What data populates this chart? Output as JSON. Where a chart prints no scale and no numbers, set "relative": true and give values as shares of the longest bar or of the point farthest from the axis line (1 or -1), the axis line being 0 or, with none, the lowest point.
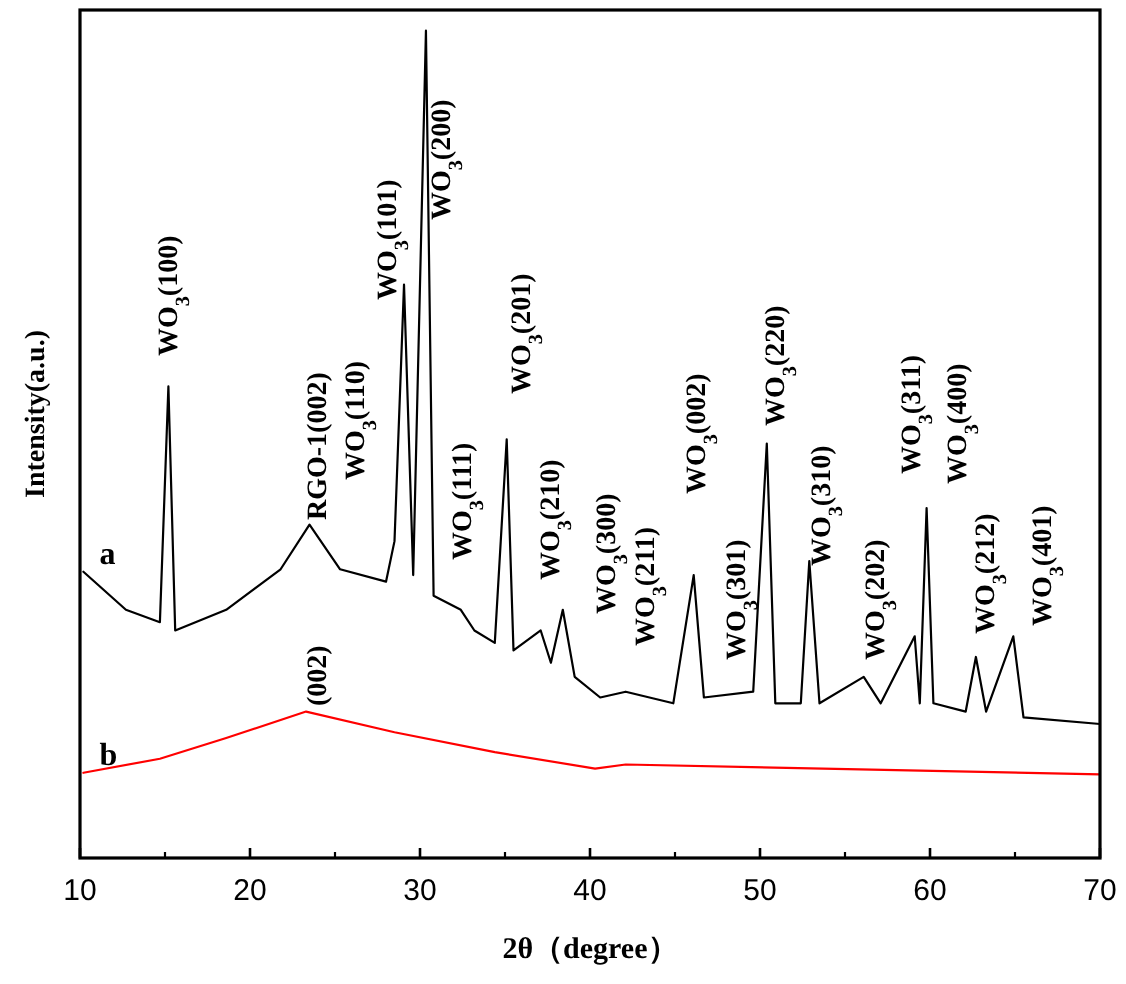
{
  "chart_data": {
    "type": "line",
    "relative": true,
    "xlabel": "2θ（degree）",
    "ylabel": "Intensity(a.u.)",
    "xlim": [
      10,
      70
    ],
    "xticks": [
      10,
      20,
      30,
      40,
      50,
      60,
      70
    ],
    "marker": "none",
    "line_style": "solid",
    "series": [
      {
        "name": "a",
        "color": "#000000",
        "x": [
          10.2,
          12.7,
          14.7,
          15.2,
          15.6,
          18.6,
          21.8,
          23.5,
          25.3,
          28.0,
          28.5,
          29.06,
          29.6,
          30.35,
          30.8,
          32.4,
          33.2,
          34.4,
          35.1,
          35.5,
          37.1,
          37.7,
          38.4,
          39.1,
          40.6,
          42.1,
          44.9,
          46.1,
          46.7,
          49.6,
          50.4,
          50.9,
          52.4,
          52.9,
          53.5,
          56.1,
          57.1,
          59.1,
          59.4,
          59.8,
          60.2,
          62.1,
          62.7,
          63.3,
          64.9,
          65.5,
          70
        ],
        "values": [
          0.346,
          0.3,
          0.285,
          0.57,
          0.275,
          0.3,
          0.349,
          0.403,
          0.349,
          0.334,
          0.383,
          0.693,
          0.342,
          1.0,
          0.317,
          0.3,
          0.275,
          0.26,
          0.506,
          0.251,
          0.275,
          0.236,
          0.3,
          0.219,
          0.194,
          0.201,
          0.187,
          0.342,
          0.194,
          0.201,
          0.501,
          0.187,
          0.187,
          0.359,
          0.187,
          0.219,
          0.187,
          0.268,
          0.187,
          0.423,
          0.187,
          0.177,
          0.243,
          0.177,
          0.268,
          0.17,
          0.162
        ]
      },
      {
        "name": "b",
        "color": "#ff0000",
        "x": [
          10.2,
          14.7,
          18.6,
          23.3,
          28.5,
          34.4,
          40.3,
          42.1,
          70
        ],
        "values": [
          0.103,
          0.12,
          0.145,
          0.177,
          0.152,
          0.128,
          0.108,
          0.113,
          0.101
        ]
      }
    ],
    "annotations": [
      "WO$_{3}$(100)",
      "RGO-1(002)",
      "WO$_{3}$(110)",
      "WO$_{3}$(101)",
      "WO$_{3}$(200)",
      "WO$_{3}$(111)",
      "WO$_{3}$(201)",
      "WO$_{3}$(210)",
      "(002)",
      "WO$_{3}$(300)",
      "WO$_{3}$(211)",
      "WO$_{3}$(002)",
      "WO$_{3}$(301)",
      "WO$_{3}$(220)",
      "WO$_{3}$(310)",
      "WO$_{3}$(202)",
      "WO$_{3}$(311)",
      "WO$_{3}$(400)",
      "WO$_{3}$(212)",
      "WO$_{3}$(401)"
    ]
  }
}
